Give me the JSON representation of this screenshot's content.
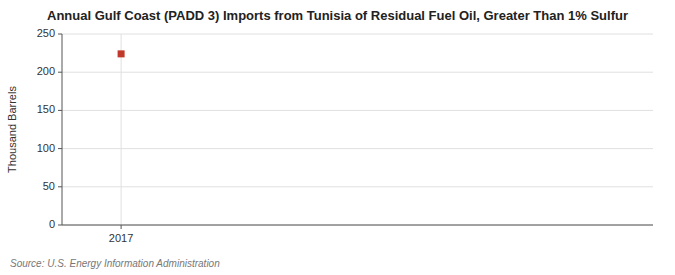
{
  "chart_data": {
    "type": "scatter",
    "title": "Annual Gulf Coast (PADD 3) Imports from Tunisia of Residual Fuel Oil, Greater Than 1% Sulfur",
    "ylabel": "Thousand Barrels",
    "source": "Source: U.S. Energy Information Administration",
    "x": [
      2017
    ],
    "values": [
      224
    ],
    "xlim": [
      2016.5,
      2021.5
    ],
    "ylim": [
      0,
      250
    ],
    "xticks": [
      2017
    ],
    "yticks": [
      0,
      50,
      100,
      150,
      200,
      250
    ],
    "color": "#c0392b",
    "marker": "square",
    "grid": true
  }
}
